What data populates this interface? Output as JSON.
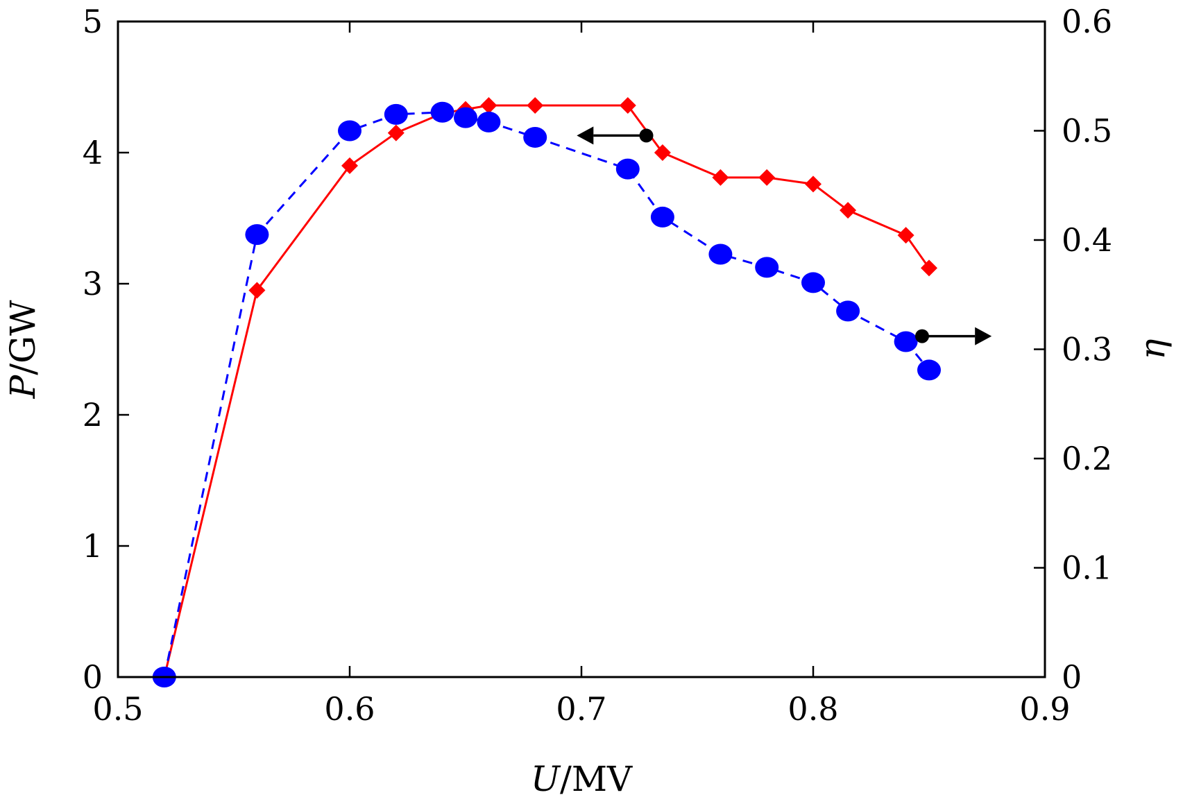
{
  "chart_data": {
    "type": "line",
    "title": "",
    "x_axis": {
      "label_var": "U",
      "label_unit": "/MV",
      "min": 0.5,
      "max": 0.9,
      "ticks": [
        0.5,
        0.6,
        0.7,
        0.8,
        0.9
      ],
      "tick_labels": [
        "0.5",
        "0.6",
        "0.7",
        "0.8",
        "0.9"
      ]
    },
    "y_axis_left": {
      "label_var": "P",
      "label_unit": "/GW",
      "min": 0,
      "max": 5,
      "ticks": [
        0,
        1,
        2,
        3,
        4,
        5
      ],
      "tick_labels": [
        "0",
        "1",
        "2",
        "3",
        "4",
        "5"
      ]
    },
    "y_axis_right": {
      "label_var": "η",
      "min": 0,
      "max": 0.6,
      "ticks": [
        0,
        0.1,
        0.2,
        0.3,
        0.4,
        0.5,
        0.6
      ],
      "tick_labels": [
        "0",
        "0.1",
        "0.2",
        "0.3",
        "0.4",
        "0.5",
        "0.6"
      ]
    },
    "grid": false,
    "legend": "none",
    "series": [
      {
        "axis": "left",
        "color": "#ff0000",
        "line_style": "solid",
        "marker": "diamond",
        "x": [
          0.52,
          0.56,
          0.6,
          0.62,
          0.64,
          0.65,
          0.66,
          0.68,
          0.72,
          0.735,
          0.76,
          0.78,
          0.8,
          0.815,
          0.84,
          0.85
        ],
        "y": [
          0.0,
          2.95,
          3.9,
          4.15,
          4.3,
          4.33,
          4.36,
          4.36,
          4.36,
          4.0,
          3.81,
          3.81,
          3.76,
          3.56,
          3.37,
          3.12
        ]
      },
      {
        "axis": "right",
        "color": "#0000ff",
        "line_style": "dashed",
        "marker": "circle",
        "x": [
          0.52,
          0.56,
          0.6,
          0.62,
          0.64,
          0.65,
          0.66,
          0.68,
          0.72,
          0.735,
          0.76,
          0.78,
          0.8,
          0.815,
          0.84,
          0.85
        ],
        "y": [
          0.0,
          0.405,
          0.5,
          0.515,
          0.517,
          0.512,
          0.508,
          0.494,
          0.465,
          0.421,
          0.387,
          0.375,
          0.361,
          0.335,
          0.307,
          0.281
        ]
      }
    ],
    "annotations": [
      {
        "type": "arrow",
        "direction": "left",
        "points_to_axis": "left",
        "x_start": 0.728,
        "x_end": 0.698,
        "y_left": 4.13
      },
      {
        "type": "arrow",
        "direction": "right",
        "points_to_axis": "right",
        "x_start": 0.847,
        "x_end": 0.877,
        "y_left": 2.6
      }
    ]
  }
}
